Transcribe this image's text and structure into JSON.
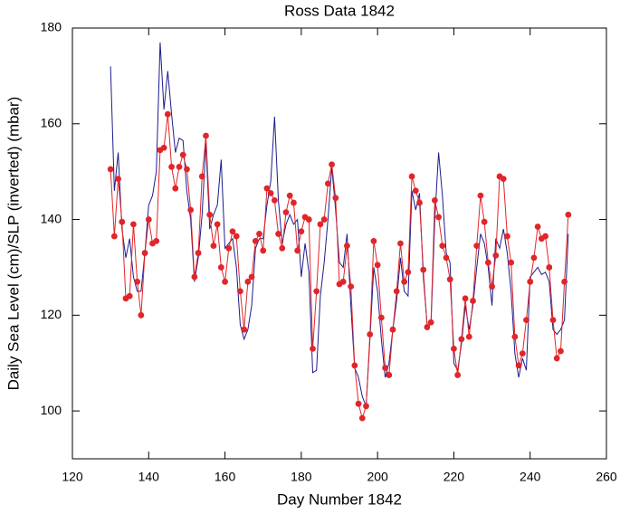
{
  "chart_data": {
    "type": "line",
    "title": "Ross Data 1842",
    "x_label": "Day Number 1842",
    "y_label": "Daily Sea Level (cm)/SLP (inverted) (mbar)",
    "xlim": [
      120,
      260
    ],
    "xticks": [
      120,
      140,
      160,
      180,
      200,
      220,
      240,
      260
    ],
    "ylim": [
      90,
      180
    ],
    "yticks": [
      100,
      120,
      140,
      160,
      180
    ],
    "grid": false,
    "x": [
      130,
      131,
      132,
      133,
      134,
      135,
      136,
      137,
      138,
      139,
      140,
      141,
      142,
      143,
      144,
      145,
      146,
      147,
      148,
      149,
      150,
      151,
      152,
      153,
      154,
      155,
      156,
      157,
      158,
      159,
      160,
      161,
      162,
      163,
      164,
      165,
      166,
      167,
      168,
      169,
      170,
      171,
      172,
      173,
      174,
      175,
      176,
      177,
      178,
      179,
      180,
      181,
      182,
      183,
      184,
      185,
      186,
      187,
      188,
      189,
      190,
      191,
      192,
      193,
      194,
      195,
      196,
      197,
      198,
      199,
      200,
      201,
      202,
      203,
      204,
      205,
      206,
      207,
      208,
      209,
      210,
      211,
      212,
      213,
      214,
      215,
      216,
      217,
      218,
      219,
      220,
      221,
      222,
      223,
      224,
      225,
      226,
      227,
      228,
      229,
      230,
      231,
      232,
      233,
      234,
      235,
      236,
      237,
      238,
      239,
      240,
      241,
      242,
      243,
      244,
      245,
      246,
      247,
      248,
      249,
      250
    ],
    "series": [
      {
        "color": "#1c1c8c",
        "markers": false,
        "values": [
          172,
          146,
          154,
          138,
          132,
          136,
          128,
          125,
          125,
          133,
          143,
          145,
          150,
          177,
          163,
          171,
          162,
          154,
          157,
          156.5,
          146,
          140,
          127,
          132,
          141,
          156,
          138,
          141,
          143,
          152.5,
          134,
          135,
          136,
          130,
          118,
          115,
          117,
          122,
          134,
          136,
          136,
          143,
          148,
          161.5,
          144,
          135,
          139,
          141,
          139,
          140,
          128,
          135,
          129,
          108,
          108.5,
          124,
          131,
          140,
          151,
          142,
          131,
          130,
          137,
          122,
          109,
          107,
          103,
          101,
          115,
          130,
          125,
          115,
          107,
          110,
          117,
          123,
          132,
          125,
          124,
          146,
          142,
          145.5,
          128,
          118,
          118,
          140,
          154,
          145,
          133,
          131,
          110,
          108.5,
          114,
          122,
          117,
          122,
          130,
          137,
          135,
          130,
          122,
          136,
          134,
          138,
          133,
          125,
          112,
          107,
          111,
          108.5,
          128,
          129,
          130,
          128.5,
          129,
          127,
          117,
          116,
          117,
          119,
          137
        ]
      },
      {
        "color": "#e0262a",
        "markers": true,
        "values": [
          150.5,
          136.5,
          148.5,
          139.5,
          123.5,
          124,
          139,
          127,
          120,
          133,
          140,
          135,
          135.5,
          154.5,
          155,
          162,
          151,
          146.5,
          151,
          153.5,
          150.5,
          142,
          128,
          133,
          149,
          157.5,
          141,
          134.5,
          139,
          130,
          127,
          134,
          137.5,
          136.5,
          125,
          117,
          127,
          128,
          135.5,
          137,
          133.5,
          146.5,
          145.5,
          144,
          137,
          134,
          141.5,
          145,
          143.5,
          133.5,
          137.5,
          140.5,
          140,
          113,
          125,
          139,
          140,
          147.5,
          151.5,
          144.5,
          126.5,
          127,
          134.5,
          126,
          109.5,
          101.5,
          98.5,
          101,
          116,
          135.5,
          130.5,
          119.5,
          109,
          107.5,
          117,
          125,
          135,
          127,
          129,
          149,
          146,
          143.5,
          129.5,
          117.5,
          118.5,
          144,
          140.5,
          134.5,
          132,
          127.5,
          113,
          107.5,
          115,
          123.5,
          115.5,
          123,
          134.5,
          145,
          139.5,
          131,
          126,
          132.5,
          149,
          148.5,
          136.5,
          131,
          115.5,
          109.5,
          112,
          119,
          127,
          132,
          138.5,
          136,
          136.5,
          130,
          119,
          111,
          112.5,
          127,
          141
        ]
      }
    ]
  }
}
